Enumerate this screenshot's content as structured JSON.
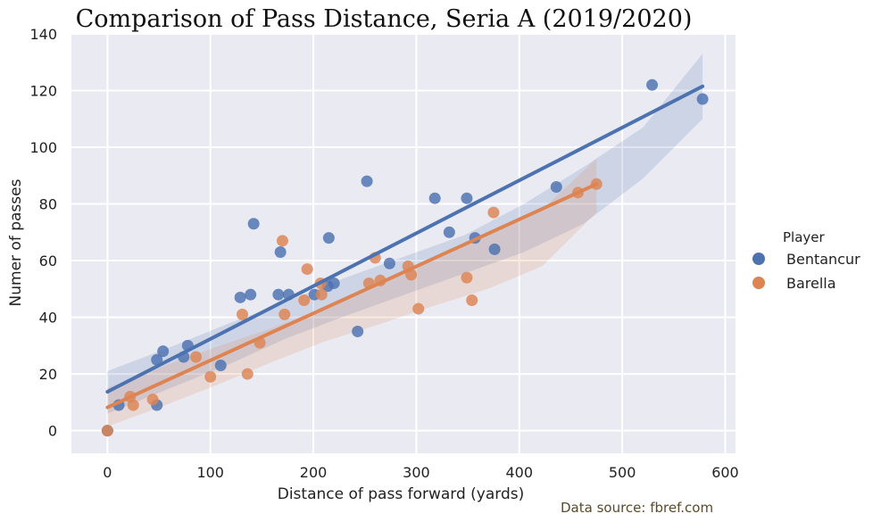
{
  "chart_data": {
    "type": "scatter",
    "title": "Comparison of Pass Distance, Seria A (2019/2020)",
    "xlabel": "Distance of pass forward (yards)",
    "ylabel": "Numer of passes",
    "xlim": [
      -35,
      610
    ],
    "ylim": [
      -8,
      140
    ],
    "xticks": [
      0,
      100,
      200,
      300,
      400,
      500,
      600
    ],
    "yticks": [
      0,
      20,
      40,
      60,
      80,
      100,
      120,
      140
    ],
    "grid": true,
    "legend": {
      "title": "Player",
      "placement": "right"
    },
    "source_note": "Data source: fbref.com",
    "series": [
      {
        "name": "Bentancur",
        "color": "#4c72b0",
        "points": [
          [
            0,
            0
          ],
          [
            11,
            9
          ],
          [
            48,
            25
          ],
          [
            48,
            9
          ],
          [
            54,
            28
          ],
          [
            74,
            26
          ],
          [
            78,
            30
          ],
          [
            110,
            23
          ],
          [
            129,
            47
          ],
          [
            139,
            48
          ],
          [
            142,
            73
          ],
          [
            166,
            48
          ],
          [
            168,
            63
          ],
          [
            176,
            48
          ],
          [
            201,
            48
          ],
          [
            214,
            51
          ],
          [
            215,
            68
          ],
          [
            220,
            52
          ],
          [
            243,
            35
          ],
          [
            252,
            88
          ],
          [
            274,
            59
          ],
          [
            318,
            82
          ],
          [
            332,
            70
          ],
          [
            349,
            82
          ],
          [
            357,
            68
          ],
          [
            376,
            64
          ],
          [
            436,
            86
          ],
          [
            529,
            122
          ],
          [
            578,
            117
          ]
        ],
        "fit": {
          "x": [
            0,
            578
          ],
          "y": [
            13.7,
            121.5
          ]
        },
        "band": {
          "upper": [
            21,
            29,
            37.5,
            45.5,
            54,
            61.5,
            69,
            80,
            93,
            107,
            133
          ],
          "lower": [
            6,
            14.5,
            23,
            32.5,
            40.5,
            48,
            55.5,
            63,
            73,
            89,
            110
          ]
        }
      },
      {
        "name": "Barella",
        "color": "#dd8452",
        "points": [
          [
            0,
            0
          ],
          [
            22,
            12
          ],
          [
            25,
            9
          ],
          [
            44,
            11
          ],
          [
            86,
            26
          ],
          [
            100,
            19
          ],
          [
            131,
            41
          ],
          [
            136,
            20
          ],
          [
            148,
            31
          ],
          [
            170,
            67
          ],
          [
            172,
            41
          ],
          [
            191,
            46
          ],
          [
            194,
            57
          ],
          [
            207,
            52
          ],
          [
            208,
            48
          ],
          [
            254,
            52
          ],
          [
            260,
            61
          ],
          [
            265,
            53
          ],
          [
            292,
            58
          ],
          [
            295,
            55
          ],
          [
            302,
            43
          ],
          [
            349,
            54
          ],
          [
            354,
            46
          ],
          [
            375,
            77
          ],
          [
            457,
            84
          ],
          [
            475,
            87
          ]
        ],
        "fit": {
          "x": [
            0,
            475
          ],
          "y": [
            8.2,
            87.0
          ]
        },
        "band": {
          "upper": [
            15,
            22.5,
            29.5,
            36,
            43.5,
            52,
            60,
            69,
            78,
            96
          ],
          "lower": [
            1.5,
            8.5,
            16,
            24,
            31.5,
            37.5,
            44,
            50,
            58,
            77
          ]
        }
      }
    ]
  }
}
